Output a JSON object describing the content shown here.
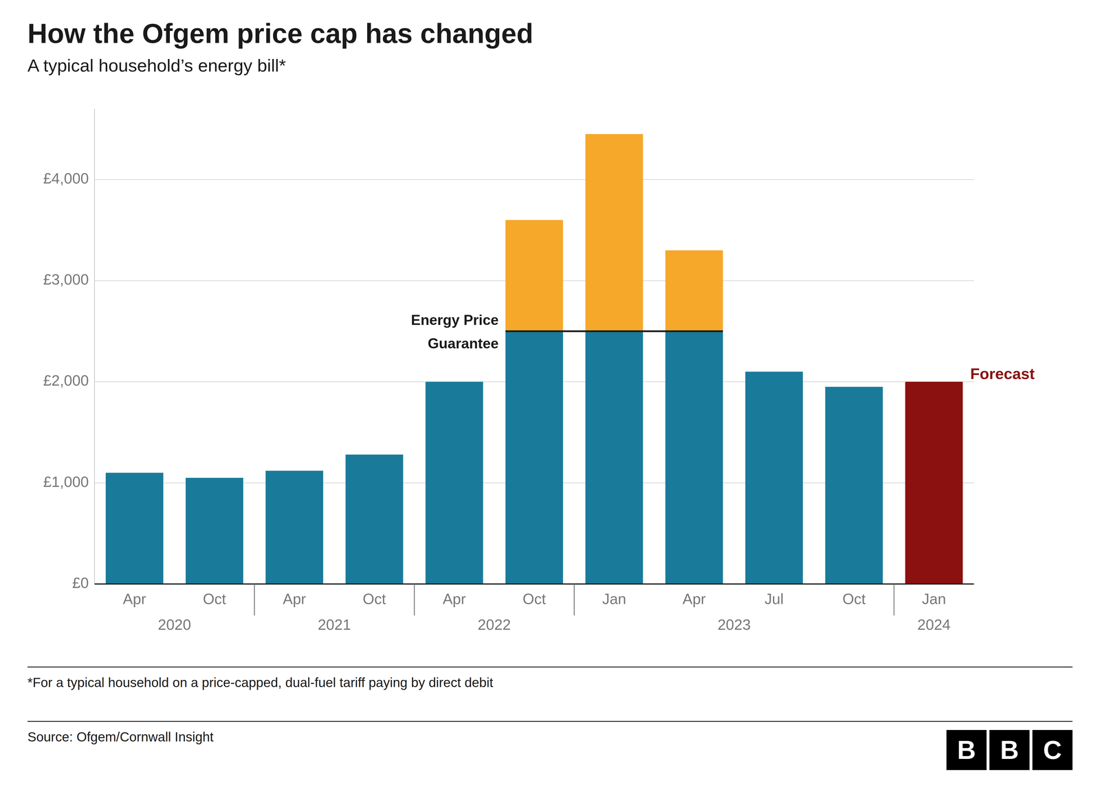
{
  "chart_data": {
    "type": "bar",
    "title": "How the Ofgem price cap has changed",
    "subtitle": "A typical household’s energy bill*",
    "footnote": "*For a typical household on a price-capped, dual-fuel tariff paying by direct debit",
    "source": "Source: Ofgem/Cornwall Insight",
    "logo": "BBC",
    "categories": [
      "Apr",
      "Oct",
      "Apr",
      "Oct",
      "Apr",
      "Oct",
      "Jan",
      "Apr",
      "Jul",
      "Oct",
      "Jan"
    ],
    "year_groups": [
      {
        "label": "2020",
        "bars": [
          0,
          1
        ]
      },
      {
        "label": "2021",
        "bars": [
          2,
          3
        ]
      },
      {
        "label": "2022",
        "bars": [
          4,
          5
        ]
      },
      {
        "label": "2023",
        "bars": [
          6,
          7,
          8,
          9
        ]
      },
      {
        "label": "2024",
        "bars": [
          10
        ]
      }
    ],
    "stacked": true,
    "series": [
      {
        "values": [
          1100,
          1050,
          1120,
          1280,
          2000,
          2500,
          2500,
          2500,
          2100,
          1950,
          2000
        ],
        "colors": [
          "#1a7a9a",
          "#1a7a9a",
          "#1a7a9a",
          "#1a7a9a",
          "#1a7a9a",
          "#1a7a9a",
          "#1a7a9a",
          "#1a7a9a",
          "#1a7a9a",
          "#1a7a9a",
          "#8b1010"
        ]
      },
      {
        "values": [
          0,
          0,
          0,
          0,
          0,
          1100,
          1950,
          800,
          0,
          0,
          0
        ],
        "color": "#f5a82a"
      }
    ],
    "annotations": [
      {
        "label_lines": [
          "Energy Price",
          "Guarantee"
        ],
        "y": 2500,
        "from": 5,
        "to": 7
      },
      {
        "text": "Forecast",
        "category": 10,
        "color": "#8b1010"
      }
    ],
    "ylim": [
      0,
      4700
    ],
    "yticks": [
      {
        "value": 0,
        "label": "£0"
      },
      {
        "value": 1000,
        "label": "£1,000"
      },
      {
        "value": 2000,
        "label": "£2,000"
      },
      {
        "value": 3000,
        "label": "£3,000"
      },
      {
        "value": 4000,
        "label": "£4,000"
      }
    ],
    "grid": true
  }
}
